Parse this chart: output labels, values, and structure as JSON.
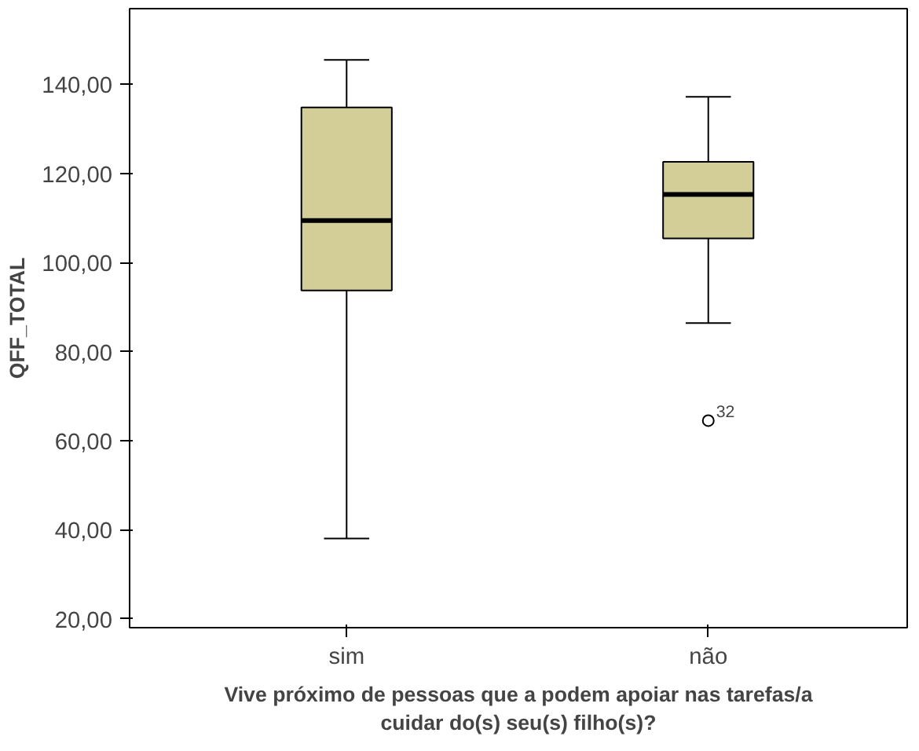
{
  "chart_data": {
    "type": "box",
    "categories": [
      "sim",
      "não"
    ],
    "boxes": [
      {
        "low": 38,
        "q1": 93.7,
        "median": 109.4,
        "q3": 134.8,
        "high": 145.5
      },
      {
        "low": 86.4,
        "q1": 105.4,
        "median": 115.3,
        "q3": 122.6,
        "high": 137.2,
        "outliers": [
          64.5
        ]
      }
    ],
    "color": "#d3ce97",
    "ylabel": "QFF_TOTAL",
    "xlabel": "Vive próximo de pessoas que a podem apoiar nas tarefas/a cuidar do(s) seu(s) filho(s)?",
    "ylim": [
      18,
      157
    ],
    "yticks": [
      {
        "value": 20,
        "label": "20,00"
      },
      {
        "value": 40,
        "label": "40,00"
      },
      {
        "value": 60,
        "label": "60,00"
      },
      {
        "value": 80,
        "label": "80,00"
      },
      {
        "value": 100,
        "label": "100,00"
      },
      {
        "value": 120,
        "label": "120,00"
      },
      {
        "value": 140,
        "label": "140,00"
      }
    ],
    "annotations": [
      "32"
    ],
    "grid": false
  }
}
